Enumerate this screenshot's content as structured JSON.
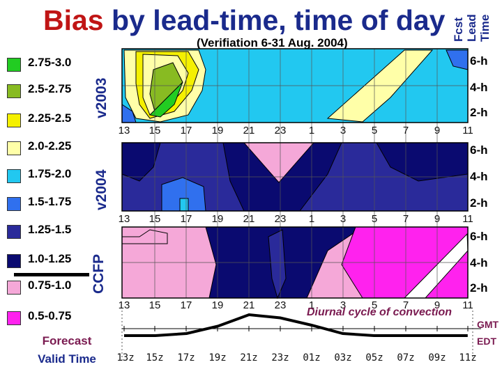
{
  "title_part1": "Bias",
  "title_part2": "by lead-time, time of day",
  "subtitle": "(Verifiation 6-31 Aug. 2004)",
  "fcst_lines": [
    "Fcst",
    "Lead",
    "Time"
  ],
  "legend": [
    {
      "label": "2.75-3.0",
      "color": "#22cc22"
    },
    {
      "label": "2.5-2.75",
      "color": "#88bb22"
    },
    {
      "label": "2.25-2.5",
      "color": "#f5f000"
    },
    {
      "label": "2.0-2.25",
      "color": "#ffffa8"
    },
    {
      "label": "1.75-2.0",
      "color": "#22c8f0"
    },
    {
      "label": "1.5-1.75",
      "color": "#3070ee"
    },
    {
      "label": "1.25-1.5",
      "color": "#2a2a9a"
    },
    {
      "label": "1.0-1.25",
      "color": "#0a0a70"
    },
    {
      "label": "0.75-1.0",
      "color": "#f5a8d8"
    },
    {
      "label": "0.5-0.75",
      "color": "#ff22ee"
    }
  ],
  "forecast_valid_time": [
    "Forecast",
    "Valid Time"
  ],
  "panels": [
    {
      "label": "v2003",
      "leads": [
        "6-h",
        "4-h",
        "2-h"
      ]
    },
    {
      "label": "v2004",
      "leads": [
        "6-h",
        "4-h",
        "2-h"
      ]
    },
    {
      "label": "CCFP",
      "leads": [
        "6-h",
        "4-h",
        "2-h"
      ]
    }
  ],
  "ticks": [
    "13",
    "15",
    "17",
    "19",
    "21",
    "23",
    "1",
    "3",
    "5",
    "7",
    "9",
    "11"
  ],
  "diurnal_label": "Diurnal cycle of convection",
  "gmt_ticks": [
    "13z",
    "15z",
    "17z",
    "19z",
    "21z",
    "23z",
    "01z",
    "03z",
    "05z",
    "07z",
    "09z",
    "11z"
  ],
  "gmt_label": "GMT",
  "edt_label": "EDT",
  "chart_data": {
    "type": "heatmap",
    "x_categories": [
      "13",
      "15",
      "17",
      "19",
      "21",
      "23",
      "1",
      "3",
      "5",
      "7",
      "9",
      "11"
    ],
    "y_categories": [
      "2-h",
      "4-h",
      "6-h"
    ],
    "panels": [
      "v2003",
      "v2004",
      "CCFP"
    ],
    "diurnal_cycle": {
      "x": [
        "13z",
        "15z",
        "17z",
        "19z",
        "21z",
        "23z",
        "01z",
        "03z",
        "05z",
        "07z",
        "09z",
        "11z"
      ],
      "y": [
        0,
        0,
        0.1,
        0.45,
        1,
        0.85,
        0.5,
        0.1,
        0,
        0,
        0,
        0
      ]
    }
  }
}
